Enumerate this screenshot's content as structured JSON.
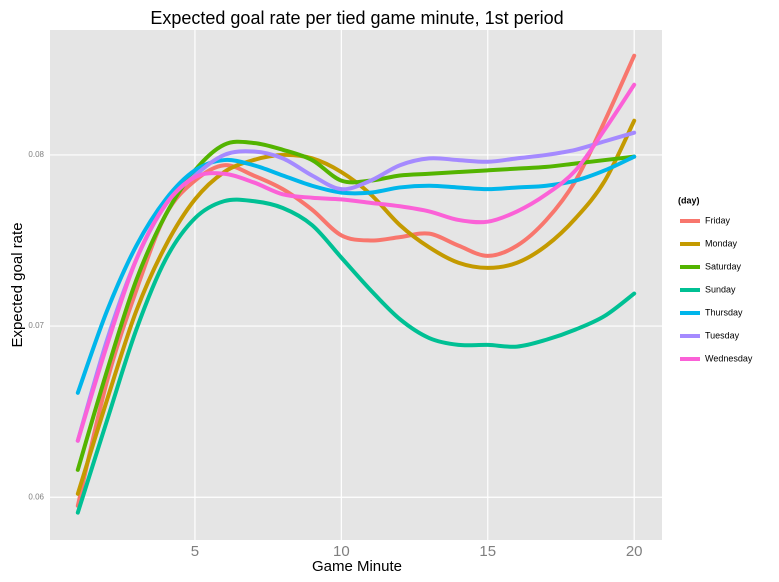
{
  "chart_data": {
    "type": "line",
    "title": "Expected goal rate per tied game minute, 1st period",
    "x_label": "Game Minute",
    "y_label": "Expected goal rate",
    "legend_title": "(day)",
    "x": [
      1,
      2,
      3,
      4,
      5,
      6,
      7,
      8,
      9,
      10,
      11,
      12,
      13,
      14,
      15,
      16,
      17,
      18,
      19,
      20
    ],
    "xlim": [
      0.05,
      20.95
    ],
    "xticks": [
      5,
      10,
      15,
      20
    ],
    "ylim": [
      0.0575,
      0.0873
    ],
    "yticks": [
      0.06,
      0.07,
      0.08
    ],
    "grid": true,
    "legend_position": "right",
    "series": [
      {
        "name": "Friday",
        "color": "#f8766d",
        "values": [
          0.0595,
          0.0668,
          0.0721,
          0.0765,
          0.0785,
          0.0794,
          0.0788,
          0.078,
          0.0768,
          0.0753,
          0.075,
          0.0752,
          0.0754,
          0.0747,
          0.0741,
          0.0747,
          0.0762,
          0.0785,
          0.082,
          0.0858
        ]
      },
      {
        "name": "Monday",
        "color": "#c49a00",
        "values": [
          0.0602,
          0.0657,
          0.0709,
          0.0747,
          0.0774,
          0.079,
          0.0797,
          0.08,
          0.0798,
          0.079,
          0.0777,
          0.0759,
          0.0746,
          0.0737,
          0.0734,
          0.0737,
          0.0747,
          0.0763,
          0.0785,
          0.082
        ]
      },
      {
        "name": "Saturday",
        "color": "#53b400",
        "values": [
          0.0616,
          0.0674,
          0.0727,
          0.0765,
          0.0791,
          0.0806,
          0.0807,
          0.0803,
          0.0797,
          0.0785,
          0.0785,
          0.0788,
          0.0789,
          0.079,
          0.0791,
          0.0792,
          0.0793,
          0.0795,
          0.0797,
          0.0799
        ]
      },
      {
        "name": "Sunday",
        "color": "#00c094",
        "values": [
          0.0591,
          0.0645,
          0.0698,
          0.0739,
          0.0763,
          0.0773,
          0.0773,
          0.0769,
          0.0759,
          0.074,
          0.0721,
          0.0704,
          0.0693,
          0.0689,
          0.0689,
          0.0688,
          0.0692,
          0.0698,
          0.0706,
          0.0719
        ]
      },
      {
        "name": "Thursday",
        "color": "#00b6eb",
        "values": [
          0.0661,
          0.0709,
          0.0747,
          0.0774,
          0.0791,
          0.0797,
          0.0794,
          0.0788,
          0.0782,
          0.0778,
          0.0778,
          0.0781,
          0.0782,
          0.0781,
          0.078,
          0.0781,
          0.0782,
          0.0785,
          0.0791,
          0.0799
        ]
      },
      {
        "name": "Tuesday",
        "color": "#a58aff",
        "values": [
          0.0633,
          0.0692,
          0.0739,
          0.0771,
          0.0788,
          0.08,
          0.0802,
          0.0798,
          0.0788,
          0.078,
          0.0785,
          0.0794,
          0.0798,
          0.0797,
          0.0796,
          0.0798,
          0.08,
          0.0803,
          0.0808,
          0.0813
        ]
      },
      {
        "name": "Wednesday",
        "color": "#fb61d7",
        "values": [
          0.0633,
          0.0689,
          0.0739,
          0.0771,
          0.0787,
          0.0789,
          0.0784,
          0.0777,
          0.0775,
          0.0774,
          0.0772,
          0.077,
          0.0767,
          0.0762,
          0.0761,
          0.0767,
          0.0777,
          0.0791,
          0.0815,
          0.0841
        ]
      }
    ]
  }
}
